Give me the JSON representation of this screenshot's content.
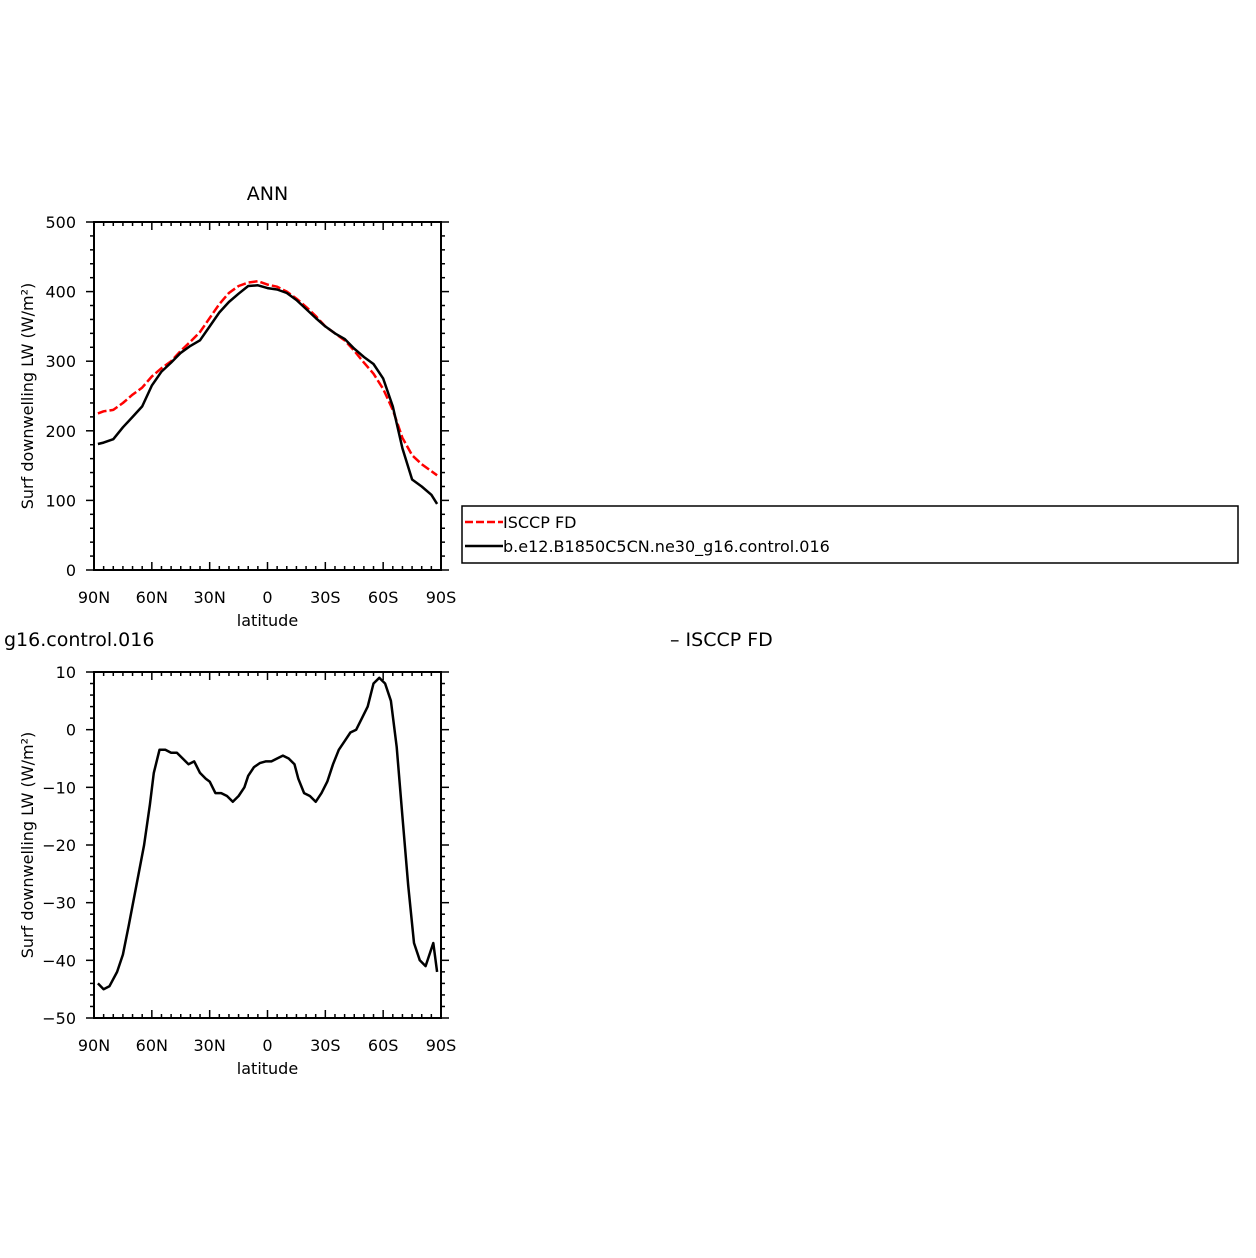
{
  "chart_data": [
    {
      "type": "line",
      "title": "ANN",
      "xlabel": "latitude",
      "ylabel": "Surf downwelling LW (W/m²)",
      "xlim": [
        90,
        -90
      ],
      "ylim": [
        0,
        500
      ],
      "x_ticks": [
        {
          "value": 90,
          "label": "90N"
        },
        {
          "value": 60,
          "label": "60N"
        },
        {
          "value": 30,
          "label": "30N"
        },
        {
          "value": 0,
          "label": "0"
        },
        {
          "value": -30,
          "label": "30S"
        },
        {
          "value": -60,
          "label": "60S"
        },
        {
          "value": -90,
          "label": "90S"
        }
      ],
      "y_ticks": [
        0,
        100,
        200,
        300,
        400,
        500
      ],
      "grid": false,
      "legend": "right",
      "series": [
        {
          "name": "ISCCP FD",
          "color": "#ff0000",
          "dash": "dashed",
          "x": [
            88,
            85,
            80,
            75,
            70,
            65,
            60,
            55,
            50,
            45,
            40,
            35,
            30,
            25,
            20,
            15,
            10,
            5,
            0,
            -5,
            -10,
            -15,
            -20,
            -25,
            -30,
            -35,
            -40,
            -45,
            -50,
            -55,
            -60,
            -65,
            -70,
            -75,
            -80,
            -85,
            -88
          ],
          "y": [
            225,
            228,
            230,
            240,
            252,
            262,
            278,
            290,
            300,
            315,
            328,
            342,
            362,
            382,
            398,
            408,
            413,
            415,
            410,
            407,
            400,
            390,
            378,
            365,
            350,
            340,
            330,
            315,
            298,
            282,
            260,
            230,
            190,
            165,
            152,
            142,
            136
          ]
        },
        {
          "name": "b.e12.B1850C5CN.ne30_g16.control.016",
          "color": "#000000",
          "dash": "solid",
          "x": [
            88,
            85,
            80,
            75,
            70,
            65,
            60,
            55,
            50,
            45,
            40,
            35,
            30,
            25,
            20,
            15,
            10,
            5,
            0,
            -5,
            -10,
            -15,
            -20,
            -25,
            -30,
            -35,
            -40,
            -45,
            -50,
            -55,
            -60,
            -65,
            -70,
            -75,
            -80,
            -85,
            -88
          ],
          "y": [
            181,
            183,
            188,
            205,
            220,
            235,
            265,
            285,
            298,
            312,
            322,
            330,
            350,
            370,
            385,
            397,
            408,
            409,
            405,
            403,
            398,
            388,
            375,
            362,
            350,
            340,
            332,
            318,
            306,
            296,
            275,
            235,
            175,
            130,
            120,
            108,
            95
          ]
        }
      ]
    },
    {
      "type": "line",
      "title": "",
      "xlabel": "latitude",
      "ylabel": "Surf downwelling LW (W/m²)",
      "xlim": [
        90,
        -90
      ],
      "ylim": [
        -50,
        10
      ],
      "x_ticks": [
        {
          "value": 90,
          "label": "90N"
        },
        {
          "value": 60,
          "label": "60N"
        },
        {
          "value": 30,
          "label": "30N"
        },
        {
          "value": 0,
          "label": "0"
        },
        {
          "value": -30,
          "label": "30S"
        },
        {
          "value": -60,
          "label": "60S"
        },
        {
          "value": -90,
          "label": "90S"
        }
      ],
      "y_ticks": [
        -50,
        -40,
        -30,
        -20,
        -10,
        0,
        10
      ],
      "grid": false,
      "left_title": "g16.control.016",
      "right_title": "– ISCCP FD",
      "series": [
        {
          "color": "#000000",
          "dash": "solid",
          "x": [
            88,
            85,
            82,
            78,
            75,
            72,
            68,
            64,
            61,
            59,
            56,
            53,
            50,
            47,
            44,
            41,
            38,
            35,
            32,
            30,
            27,
            24,
            21,
            18,
            15,
            12,
            10,
            7,
            4,
            1,
            -2,
            -5,
            -8,
            -11,
            -14,
            -16,
            -19,
            -22,
            -25,
            -28,
            -31,
            -34,
            -37,
            -40,
            -43,
            -46,
            -49,
            -52,
            -55,
            -58,
            -61,
            -64,
            -67,
            -70,
            -73,
            -76,
            -79,
            -82,
            -86,
            -88
          ],
          "y": [
            -44,
            -45,
            -44.5,
            -42,
            -39,
            -34,
            -27,
            -20,
            -13,
            -7.5,
            -3.5,
            -3.5,
            -4,
            -4,
            -5,
            -6,
            -5.5,
            -7.5,
            -8.5,
            -9,
            -11,
            -11,
            -11.5,
            -12.5,
            -11.5,
            -10,
            -8,
            -6.5,
            -5.8,
            -5.5,
            -5.5,
            -5,
            -4.5,
            -5,
            -6,
            -8.5,
            -11,
            -11.5,
            -12.5,
            -11,
            -9,
            -6,
            -3.5,
            -2,
            -0.5,
            0,
            2,
            4,
            8,
            9,
            8,
            5,
            -3,
            -15,
            -27,
            -37,
            -40,
            -41,
            -37,
            -42
          ]
        }
      ]
    }
  ]
}
